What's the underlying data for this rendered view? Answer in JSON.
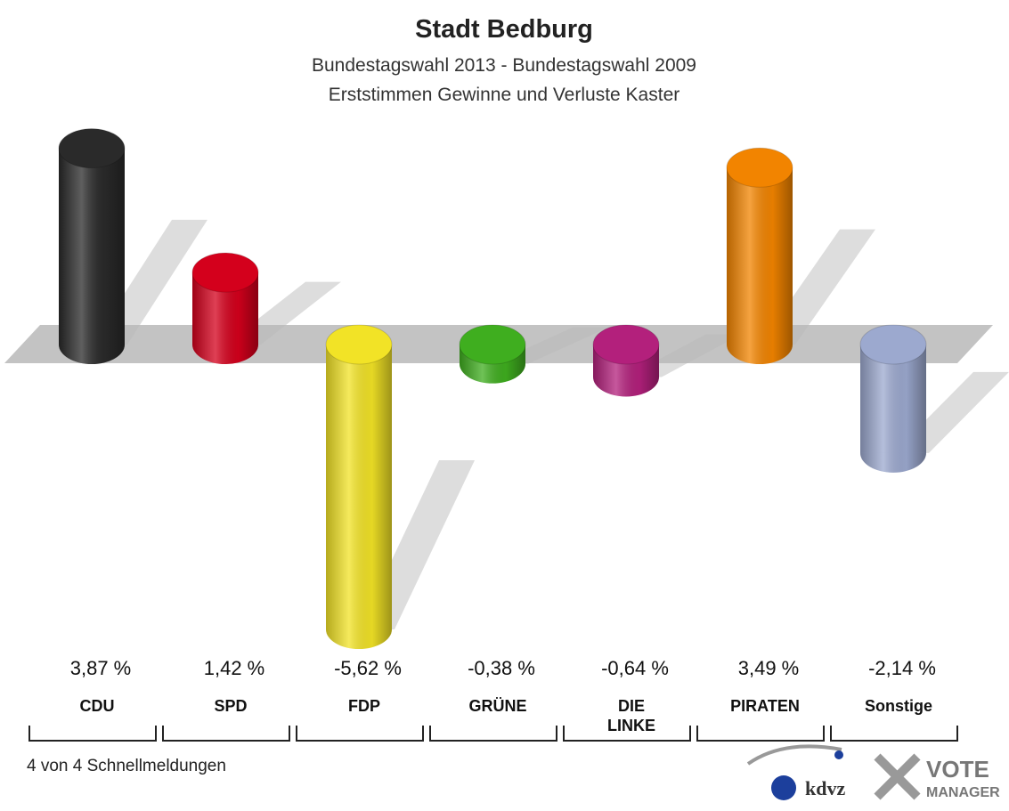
{
  "chart_data": {
    "type": "bar",
    "title": "Stadt Bedburg",
    "subtitle": [
      "Bundestagswahl 2013 - Bundestagswahl 2009",
      "Erststimmen Gewinne und Verluste Kaster"
    ],
    "categories": [
      "CDU",
      "SPD",
      "FDP",
      "GRÜNE",
      "DIE LINKE",
      "PIRATEN",
      "Sonstige"
    ],
    "values": [
      3.87,
      1.42,
      -5.62,
      -0.38,
      -0.64,
      3.49,
      -2.14
    ],
    "value_labels": [
      "3,87 %",
      "1,42 %",
      "-5,62 %",
      "-0,38 %",
      "-0,64 %",
      "3,49 %",
      "-2,14 %"
    ],
    "colors": [
      "#2a2a2a",
      "#d4001c",
      "#f2e326",
      "#3fae1f",
      "#b3207c",
      "#f28400",
      "#9ca9cf"
    ],
    "footer": "4 von 4 Schnellmeldungen",
    "logos": [
      "kdvz",
      "VOTE",
      "MANAGER"
    ]
  }
}
